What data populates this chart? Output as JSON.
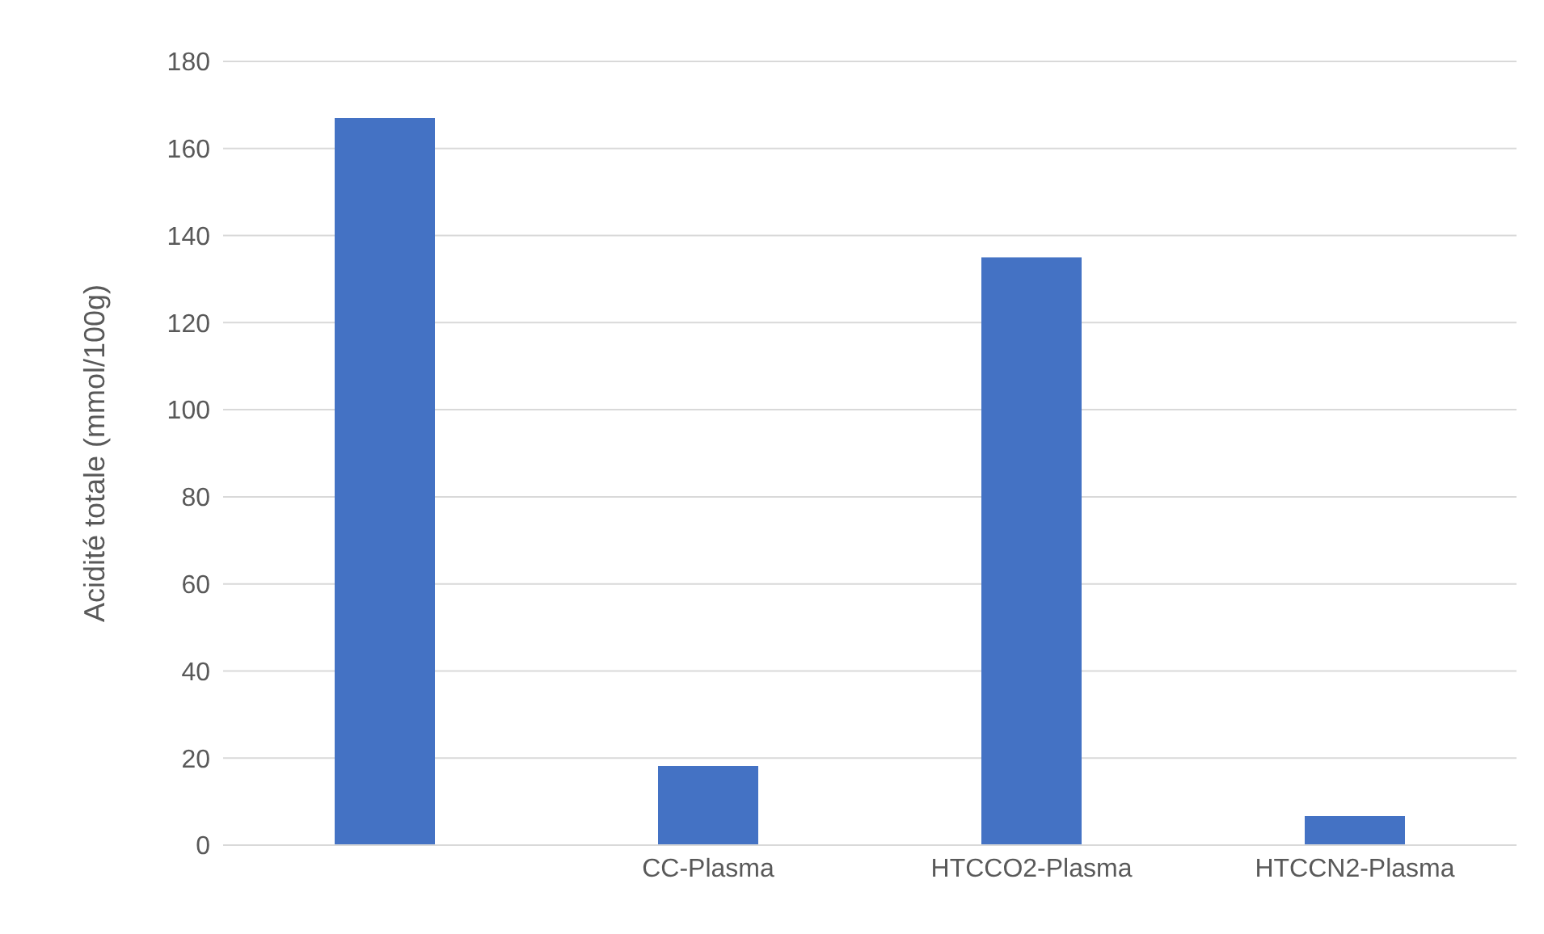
{
  "chart_data": {
    "type": "bar",
    "ylabel": "Acidité totale (mmol/100g)",
    "categories": [
      null,
      "CC-Plasma",
      "HTCCO2-Plasma",
      "HTCCN2-Plasma"
    ],
    "values": [
      167,
      18.2,
      135,
      6.7
    ],
    "color": "#4472c4",
    "ylim": [
      0,
      180
    ],
    "yticks": [
      0,
      20,
      40,
      60,
      80,
      100,
      120,
      140,
      160,
      180
    ],
    "grid": "y"
  }
}
